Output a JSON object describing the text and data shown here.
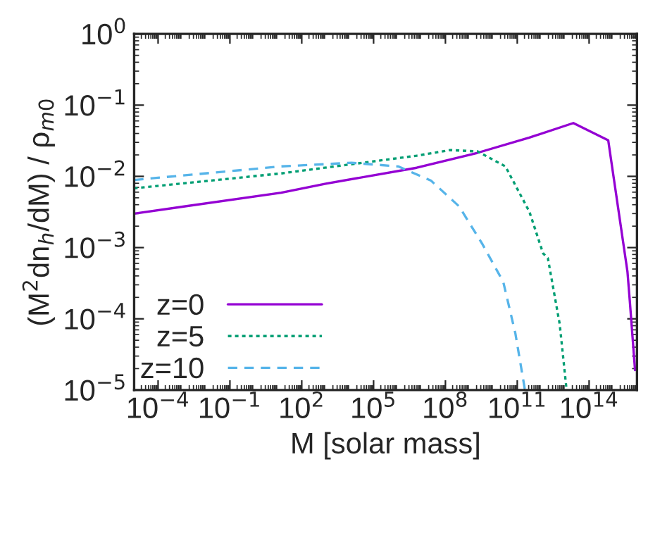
{
  "chart_data": {
    "type": "line",
    "xlabel": "M [solar mass]",
    "ylabel": "(M$^{2}$dn$_{h}$/dM) / ρ$_{m0}$",
    "log": "xy",
    "legend": "bottom left",
    "grid": false,
    "xlim": [
      1e-05,
      1e+16
    ],
    "ylim": [
      1e-05,
      1
    ],
    "xticks": [
      {
        "value": 0.0001,
        "label": "10$^{−4}$"
      },
      {
        "value": 0.1,
        "label": "10$^{−1}$"
      },
      {
        "value": 100,
        "label": "10$^{2}$"
      },
      {
        "value": 100000.0,
        "label": "10$^{5}$"
      },
      {
        "value": 100000000.0,
        "label": "10$^{8}$"
      },
      {
        "value": 100000000000.0,
        "label": "10$^{11}$"
      },
      {
        "value": 100000000000000.0,
        "label": "10$^{14}$"
      }
    ],
    "yticks": [
      {
        "value": 1e-05,
        "label": "10$^{−5}$"
      },
      {
        "value": 0.0001,
        "label": "10$^{−4}$"
      },
      {
        "value": 0.001,
        "label": "10$^{−3}$"
      },
      {
        "value": 0.01,
        "label": "10$^{−2}$"
      },
      {
        "value": 0.1,
        "label": "10$^{−1}$"
      },
      {
        "value": 1,
        "label": "10$^{0}$"
      }
    ],
    "series": [
      {
        "name": "z=0",
        "color": "#9400d3",
        "line_style": "solid",
        "x": [
          1e-05,
          14,
          1000,
          6300000.0,
          2200000000.0,
          320000000000.0,
          22000000000000.0,
          630000000000000.0,
          4000000000000000.0,
          5000000000000000.0,
          8300000000000000.0
        ],
        "values": [
          0.003,
          0.0059,
          0.0079,
          0.0132,
          0.0214,
          0.035,
          0.056,
          0.032,
          0.00046,
          0.00018,
          1.9e-05
        ]
      },
      {
        "name": "z=5",
        "color": "#009e73",
        "line_style": "dotted",
        "x": [
          1e-05,
          14,
          6300000.0,
          160000000.0,
          2200000000.0,
          32000000000.0,
          320000000000.0,
          1200000000000.0,
          1900000000000.0,
          5900000000000.0,
          11500000000000.0
        ],
        "values": [
          0.0068,
          0.011,
          0.0195,
          0.0234,
          0.0224,
          0.0138,
          0.0032,
          0.00083,
          0.00071,
          8.5e-05,
          1e-05
        ]
      },
      {
        "name": "z=10",
        "color": "#56b4e9",
        "line_style": "dashed",
        "x": [
          1e-05,
          14,
          12000,
          1070000.0,
          25000000.0,
          370000000.0,
          3500000000.0,
          26000000000.0,
          83000000000.0,
          210000000000.0
        ],
        "values": [
          0.0089,
          0.0138,
          0.0155,
          0.0138,
          0.0087,
          0.0038,
          0.00112,
          0.00033,
          6.3e-05,
          1e-05
        ]
      }
    ]
  }
}
